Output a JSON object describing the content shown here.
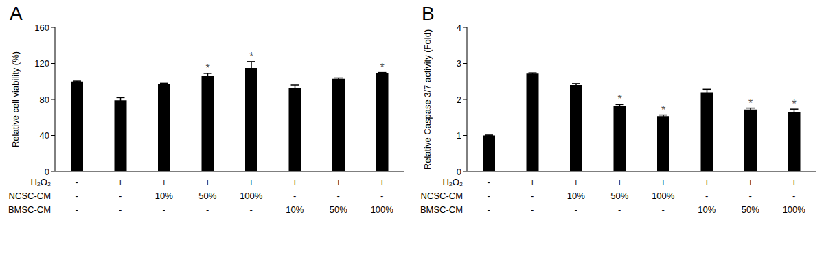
{
  "chart_data": [
    {
      "type": "bar",
      "title": "A",
      "y_label": "Relative cell viability (%)",
      "categories": [
        null,
        null,
        null,
        null,
        null,
        null,
        null,
        null
      ],
      "values": [
        100,
        79,
        97,
        106,
        115,
        93,
        103,
        109
      ],
      "errors": [
        0.5,
        3,
        1,
        3,
        7,
        3,
        1,
        1
      ],
      "color": "#000000",
      "ylim": [
        0,
        160
      ],
      "yticks": [
        0,
        40,
        80,
        120,
        160
      ],
      "grid": false,
      "significant": [
        false,
        false,
        false,
        true,
        true,
        false,
        false,
        true
      ],
      "significant_label": "*",
      "condition_rows": [
        {
          "label": "H₂O₂",
          "values": [
            "-",
            "+",
            "+",
            "+",
            "+",
            "+",
            "+",
            "+"
          ]
        },
        {
          "label": "NCSC-CM",
          "values": [
            "-",
            "-",
            "10%",
            "50%",
            "100%",
            "-",
            "-",
            "-"
          ]
        },
        {
          "label": "BMSC-CM",
          "values": [
            "-",
            "-",
            "-",
            "-",
            "-",
            "10%",
            "50%",
            "100%"
          ]
        }
      ]
    },
    {
      "type": "bar",
      "title": "B",
      "y_label": "Relative Caspase 3/7 activity (Fold)",
      "categories": [
        null,
        null,
        null,
        null,
        null,
        null,
        null,
        null
      ],
      "values": [
        1.0,
        2.72,
        2.4,
        1.83,
        1.54,
        2.2,
        1.72,
        1.65
      ],
      "errors": [
        0.01,
        0.02,
        0.04,
        0.03,
        0.03,
        0.08,
        0.04,
        0.08
      ],
      "color": "#000000",
      "ylim": [
        0,
        4
      ],
      "yticks": [
        0,
        1,
        2,
        3,
        4
      ],
      "grid": false,
      "significant": [
        false,
        false,
        false,
        true,
        true,
        false,
        true,
        true
      ],
      "significant_label": "*",
      "condition_rows": [
        {
          "label": "H₂O₂",
          "values": [
            "-",
            "+",
            "+",
            "+",
            "+",
            "+",
            "+",
            "+"
          ]
        },
        {
          "label": "NCSC-CM",
          "values": [
            "-",
            "-",
            "10%",
            "50%",
            "100%",
            "-",
            "-",
            "-"
          ]
        },
        {
          "label": "BMSC-CM",
          "values": [
            "-",
            "-",
            "-",
            "-",
            "-",
            "10%",
            "50%",
            "100%"
          ]
        }
      ]
    }
  ]
}
